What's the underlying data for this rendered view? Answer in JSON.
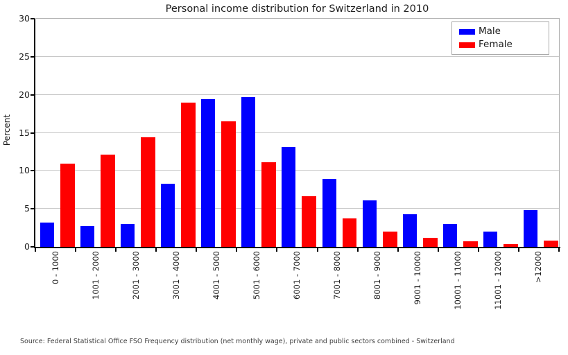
{
  "chart_data": {
    "type": "bar",
    "title": "Personal income distribution for Switzerland in 2010",
    "xlabel": "",
    "ylabel": "Percent",
    "ylim": [
      0,
      30
    ],
    "yticks": [
      0,
      5,
      10,
      15,
      20,
      25,
      30
    ],
    "grid": true,
    "legend_position": "top-right",
    "categories": [
      "0 - 1000",
      "1001 - 2000",
      "2001 - 3000",
      "3001 - 4000",
      "4001 - 5000",
      "5001 - 6000",
      "6001 - 7000",
      "7001 - 8000",
      "8001 - 9000",
      "9001 - 10000",
      "10001 - 11000",
      "11001 - 12000",
      ">12000"
    ],
    "series": [
      {
        "name": "Male",
        "color": "#0000ff",
        "values": [
          3.2,
          2.7,
          3.0,
          8.3,
          19.4,
          19.7,
          13.1,
          8.9,
          6.1,
          4.3,
          3.0,
          2.0,
          4.8
        ]
      },
      {
        "name": "Female",
        "color": "#ff0000",
        "values": [
          10.9,
          12.1,
          14.4,
          19.0,
          16.5,
          11.1,
          6.7,
          3.7,
          2.0,
          1.2,
          0.7,
          0.4,
          0.8
        ]
      }
    ],
    "source": "Source: Federal Statistical Office FSO Frequency distribution (net monthly wage), private and public sectors combined - Switzerland"
  },
  "colors": {
    "male": "#0000ff",
    "female": "#ff0000",
    "gridline": "#c8c8c8",
    "axis": "#000000",
    "frame": "#b0b0b0"
  }
}
